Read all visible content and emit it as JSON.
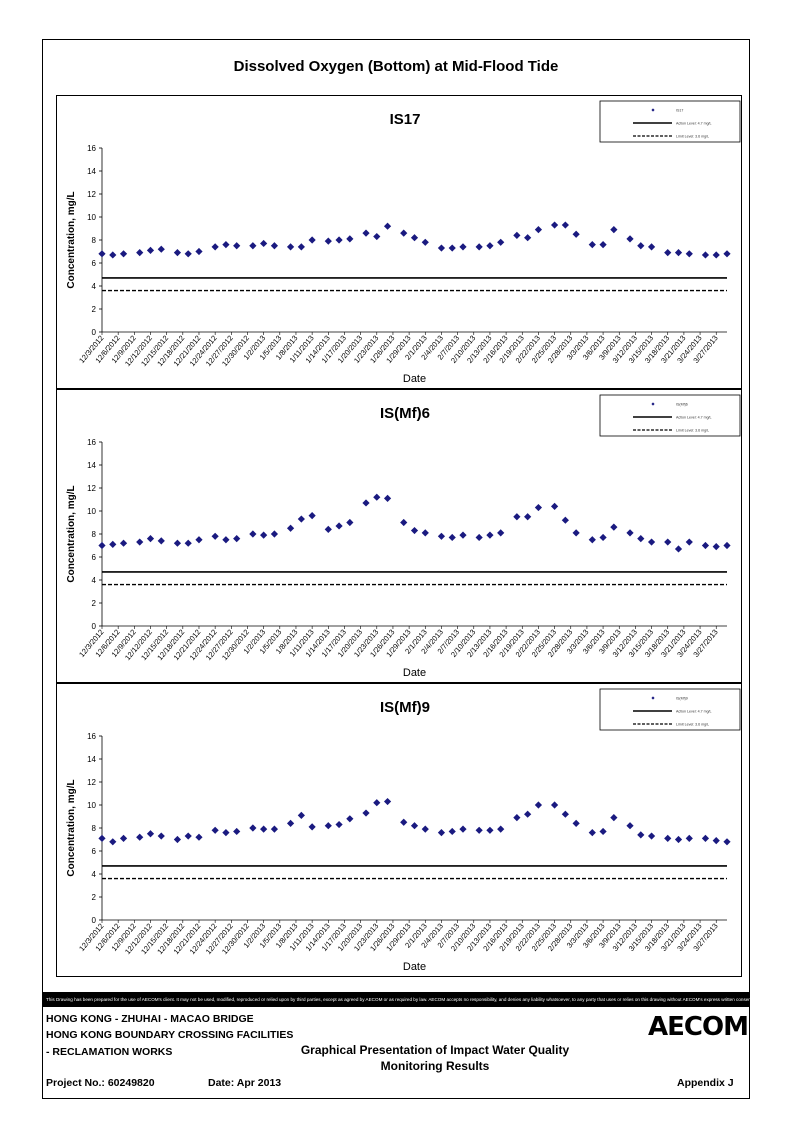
{
  "page": {
    "title": "Dissolved Oxygen (Bottom) at Mid-Flood Tide",
    "disclaimer": "This Drawing has been prepared for the use of AECOM's client. It may not be used, modified, reproduced or relied upon by third parties, except as agreed by AECOM or as required by law. AECOM accepts no responsibility, and denies any liability whatsoever, to any party that uses or relies on this drawing without AECOM's express written consent.",
    "footer": {
      "line1": "HONG KONG - ZHUHAI - MACAO BRIDGE",
      "line2": "HONG KONG BOUNDARY CROSSING FACILITIES",
      "line3": "- RECLAMATION WORKS",
      "heading1": "Graphical Presentation of Impact Water Quality",
      "heading2": "Monitoring Results",
      "project": "Project No.: 60249820",
      "date": "Date: Apr 2013",
      "appendix": "Appendix J",
      "logo": "AECOM"
    }
  },
  "chart_data": [
    {
      "type": "scatter",
      "title": "IS17",
      "xlabel": "Date",
      "ylabel": "Concentration, mg/L",
      "ylim": [
        0,
        16
      ],
      "yticks": [
        0,
        2,
        4,
        6,
        8,
        10,
        12,
        14,
        16
      ],
      "xticks": [
        "12/3/2012",
        "12/6/2012",
        "12/9/2012",
        "12/12/2012",
        "12/15/2012",
        "12/18/2012",
        "12/21/2012",
        "12/24/2012",
        "12/27/2012",
        "12/30/2012",
        "1/2/2013",
        "1/5/2013",
        "1/8/2013",
        "1/11/2013",
        "1/14/2013",
        "1/17/2013",
        "1/20/2013",
        "1/23/2013",
        "1/26/2013",
        "1/29/2013",
        "2/1/2013",
        "2/4/2013",
        "2/7/2013",
        "2/10/2013",
        "2/13/2013",
        "2/16/2013",
        "2/19/2013",
        "2/22/2013",
        "2/25/2013",
        "2/28/2013",
        "3/3/2013",
        "3/6/2013",
        "3/9/2013",
        "3/12/2013",
        "3/15/2013",
        "3/18/2013",
        "3/21/2013",
        "3/24/2013",
        "3/27/2013"
      ],
      "grid": false,
      "legend": {
        "position": "top-right",
        "entries": [
          "IS17",
          "Action Level: 4.7 mg/L",
          "Limit Level: 3.6 mg/L"
        ]
      },
      "action_level": 4.7,
      "limit_level": 3.6,
      "series": [
        {
          "name": "IS17",
          "marker": "diamond",
          "color": "#1a1a80",
          "x": [
            "12/3/2012",
            "12/5/2012",
            "12/7/2012",
            "12/10/2012",
            "12/12/2012",
            "12/14/2012",
            "12/17/2012",
            "12/19/2012",
            "12/21/2012",
            "12/24/2012",
            "12/26/2012",
            "12/28/2012",
            "12/31/2012",
            "1/2/2013",
            "1/4/2013",
            "1/7/2013",
            "1/9/2013",
            "1/11/2013",
            "1/14/2013",
            "1/16/2013",
            "1/18/2013",
            "1/21/2013",
            "1/23/2013",
            "1/25/2013",
            "1/28/2013",
            "1/30/2013",
            "2/1/2013",
            "2/4/2013",
            "2/6/2013",
            "2/8/2013",
            "2/11/2013",
            "2/13/2013",
            "2/15/2013",
            "2/18/2013",
            "2/20/2013",
            "2/22/2013",
            "2/25/2013",
            "2/27/2013",
            "3/1/2013",
            "3/4/2013",
            "3/6/2013",
            "3/8/2013",
            "3/11/2013",
            "3/13/2013",
            "3/15/2013",
            "3/18/2013",
            "3/20/2013",
            "3/22/2013",
            "3/25/2013",
            "3/27/2013",
            "3/29/2013"
          ],
          "y": [
            6.8,
            6.7,
            6.8,
            6.9,
            7.1,
            7.2,
            6.9,
            6.8,
            7.0,
            7.4,
            7.6,
            7.5,
            7.5,
            7.7,
            7.5,
            7.4,
            7.4,
            8.0,
            7.9,
            8.0,
            8.1,
            8.6,
            8.3,
            9.2,
            8.6,
            8.2,
            7.8,
            7.3,
            7.3,
            7.4,
            7.4,
            7.5,
            7.8,
            8.4,
            8.2,
            8.9,
            9.3,
            9.3,
            8.5,
            7.6,
            7.6,
            8.9,
            8.1,
            7.5,
            7.4,
            6.9,
            6.9,
            6.8,
            6.7,
            6.7,
            6.8
          ]
        }
      ]
    },
    {
      "type": "scatter",
      "title": "IS(Mf)6",
      "xlabel": "Date",
      "ylabel": "Concentration, mg/L",
      "ylim": [
        0,
        16
      ],
      "yticks": [
        0,
        2,
        4,
        6,
        8,
        10,
        12,
        14,
        16
      ],
      "xticks": [
        "12/3/2012",
        "12/6/2012",
        "12/9/2012",
        "12/12/2012",
        "12/15/2012",
        "12/18/2012",
        "12/21/2012",
        "12/24/2012",
        "12/27/2012",
        "12/30/2012",
        "1/2/2013",
        "1/5/2013",
        "1/8/2013",
        "1/11/2013",
        "1/14/2013",
        "1/17/2013",
        "1/20/2013",
        "1/23/2013",
        "1/26/2013",
        "1/29/2013",
        "2/1/2013",
        "2/4/2013",
        "2/7/2013",
        "2/10/2013",
        "2/13/2013",
        "2/16/2013",
        "2/19/2013",
        "2/22/2013",
        "2/25/2013",
        "2/28/2013",
        "3/3/2013",
        "3/6/2013",
        "3/9/2013",
        "3/12/2013",
        "3/15/2013",
        "3/18/2013",
        "3/21/2013",
        "3/24/2013",
        "3/27/2013"
      ],
      "grid": false,
      "legend": {
        "position": "top-right",
        "entries": [
          "IS(Mf)6",
          "Action Level: 4.7 mg/L",
          "Limit Level: 3.6 mg/L"
        ]
      },
      "action_level": 4.7,
      "limit_level": 3.6,
      "series": [
        {
          "name": "IS(Mf)6",
          "marker": "diamond",
          "color": "#1a1a80",
          "x": [
            "12/3/2012",
            "12/5/2012",
            "12/7/2012",
            "12/10/2012",
            "12/12/2012",
            "12/14/2012",
            "12/17/2012",
            "12/19/2012",
            "12/21/2012",
            "12/24/2012",
            "12/26/2012",
            "12/28/2012",
            "12/31/2012",
            "1/2/2013",
            "1/4/2013",
            "1/7/2013",
            "1/9/2013",
            "1/11/2013",
            "1/14/2013",
            "1/16/2013",
            "1/18/2013",
            "1/21/2013",
            "1/23/2013",
            "1/25/2013",
            "1/28/2013",
            "1/30/2013",
            "2/1/2013",
            "2/4/2013",
            "2/6/2013",
            "2/8/2013",
            "2/11/2013",
            "2/13/2013",
            "2/15/2013",
            "2/18/2013",
            "2/20/2013",
            "2/22/2013",
            "2/25/2013",
            "2/27/2013",
            "3/1/2013",
            "3/4/2013",
            "3/6/2013",
            "3/8/2013",
            "3/11/2013",
            "3/13/2013",
            "3/15/2013",
            "3/18/2013",
            "3/20/2013",
            "3/22/2013",
            "3/25/2013",
            "3/27/2013",
            "3/29/2013"
          ],
          "y": [
            7.0,
            7.1,
            7.2,
            7.3,
            7.6,
            7.4,
            7.2,
            7.2,
            7.5,
            7.8,
            7.5,
            7.6,
            8.0,
            7.9,
            8.0,
            8.5,
            9.3,
            9.6,
            8.4,
            8.7,
            9.0,
            10.7,
            11.2,
            11.1,
            9.0,
            8.3,
            8.1,
            7.8,
            7.7,
            7.9,
            7.7,
            7.9,
            8.1,
            9.5,
            9.5,
            10.3,
            10.4,
            9.2,
            8.1,
            7.5,
            7.7,
            8.6,
            8.1,
            7.6,
            7.3,
            7.3,
            6.7,
            7.3,
            7.0,
            6.9,
            7.0
          ]
        }
      ]
    },
    {
      "type": "scatter",
      "title": "IS(Mf)9",
      "xlabel": "Date",
      "ylabel": "Concentration, mg/L",
      "ylim": [
        0,
        16
      ],
      "yticks": [
        0,
        2,
        4,
        6,
        8,
        10,
        12,
        14,
        16
      ],
      "xticks": [
        "12/3/2012",
        "12/6/2012",
        "12/9/2012",
        "12/12/2012",
        "12/15/2012",
        "12/18/2012",
        "12/21/2012",
        "12/24/2012",
        "12/27/2012",
        "12/30/2012",
        "1/2/2013",
        "1/5/2013",
        "1/8/2013",
        "1/11/2013",
        "1/14/2013",
        "1/17/2013",
        "1/20/2013",
        "1/23/2013",
        "1/26/2013",
        "1/29/2013",
        "2/1/2013",
        "2/4/2013",
        "2/7/2013",
        "2/10/2013",
        "2/13/2013",
        "2/16/2013",
        "2/19/2013",
        "2/22/2013",
        "2/25/2013",
        "2/28/2013",
        "3/3/2013",
        "3/6/2013",
        "3/9/2013",
        "3/12/2013",
        "3/15/2013",
        "3/18/2013",
        "3/21/2013",
        "3/24/2013",
        "3/27/2013"
      ],
      "grid": false,
      "legend": {
        "position": "top-right",
        "entries": [
          "IS(Mf)9",
          "Action Level: 4.7 mg/L",
          "Limit Level: 3.6 mg/L"
        ]
      },
      "action_level": 4.7,
      "limit_level": 3.6,
      "series": [
        {
          "name": "IS(Mf)9",
          "marker": "diamond",
          "color": "#1a1a80",
          "x": [
            "12/3/2012",
            "12/5/2012",
            "12/7/2012",
            "12/10/2012",
            "12/12/2012",
            "12/14/2012",
            "12/17/2012",
            "12/19/2012",
            "12/21/2012",
            "12/24/2012",
            "12/26/2012",
            "12/28/2012",
            "12/31/2012",
            "1/2/2013",
            "1/4/2013",
            "1/7/2013",
            "1/9/2013",
            "1/11/2013",
            "1/14/2013",
            "1/16/2013",
            "1/18/2013",
            "1/21/2013",
            "1/23/2013",
            "1/25/2013",
            "1/28/2013",
            "1/30/2013",
            "2/1/2013",
            "2/4/2013",
            "2/6/2013",
            "2/8/2013",
            "2/11/2013",
            "2/13/2013",
            "2/15/2013",
            "2/18/2013",
            "2/20/2013",
            "2/22/2013",
            "2/25/2013",
            "2/27/2013",
            "3/1/2013",
            "3/4/2013",
            "3/6/2013",
            "3/8/2013",
            "3/11/2013",
            "3/13/2013",
            "3/15/2013",
            "3/18/2013",
            "3/20/2013",
            "3/22/2013",
            "3/25/2013",
            "3/27/2013",
            "3/29/2013"
          ],
          "y": [
            7.1,
            6.8,
            7.1,
            7.2,
            7.5,
            7.3,
            7.0,
            7.3,
            7.2,
            7.8,
            7.6,
            7.7,
            8.0,
            7.9,
            7.9,
            8.4,
            9.1,
            8.1,
            8.2,
            8.3,
            8.8,
            9.3,
            10.2,
            10.3,
            8.5,
            8.2,
            7.9,
            7.6,
            7.7,
            7.9,
            7.8,
            7.8,
            7.9,
            8.9,
            9.2,
            10.0,
            10.0,
            9.2,
            8.4,
            7.6,
            7.7,
            8.9,
            8.2,
            7.4,
            7.3,
            7.1,
            7.0,
            7.1,
            7.1,
            6.9,
            6.8
          ]
        }
      ]
    }
  ]
}
